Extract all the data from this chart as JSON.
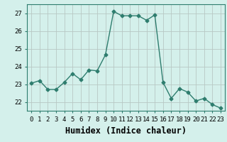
{
  "x": [
    0,
    1,
    2,
    3,
    4,
    5,
    6,
    7,
    8,
    9,
    10,
    11,
    12,
    13,
    14,
    15,
    16,
    17,
    18,
    19,
    20,
    21,
    22,
    23
  ],
  "y": [
    23.05,
    23.2,
    22.7,
    22.7,
    23.1,
    23.6,
    23.25,
    23.8,
    23.75,
    24.65,
    27.1,
    26.85,
    26.85,
    26.85,
    26.6,
    26.9,
    23.1,
    22.2,
    22.75,
    22.55,
    22.05,
    22.2,
    21.85,
    21.65
  ],
  "line_color": "#2e7d6e",
  "marker": "D",
  "markersize": 2.5,
  "linewidth": 1.0,
  "bg_color": "#d4f0eb",
  "grid_color": "#b8c8c4",
  "xlabel": "Humidex (Indice chaleur)",
  "ylabel": "",
  "ylim": [
    21.5,
    27.5
  ],
  "yticks": [
    22,
    23,
    24,
    25,
    26,
    27
  ],
  "xtick_labels": [
    "0",
    "1",
    "2",
    "3",
    "4",
    "5",
    "6",
    "7",
    "8",
    "9",
    "10",
    "11",
    "12",
    "13",
    "14",
    "15",
    "16",
    "17",
    "18",
    "19",
    "20",
    "21",
    "22",
    "23"
  ],
  "tick_fontsize": 6.5,
  "xlabel_fontsize": 8.5
}
